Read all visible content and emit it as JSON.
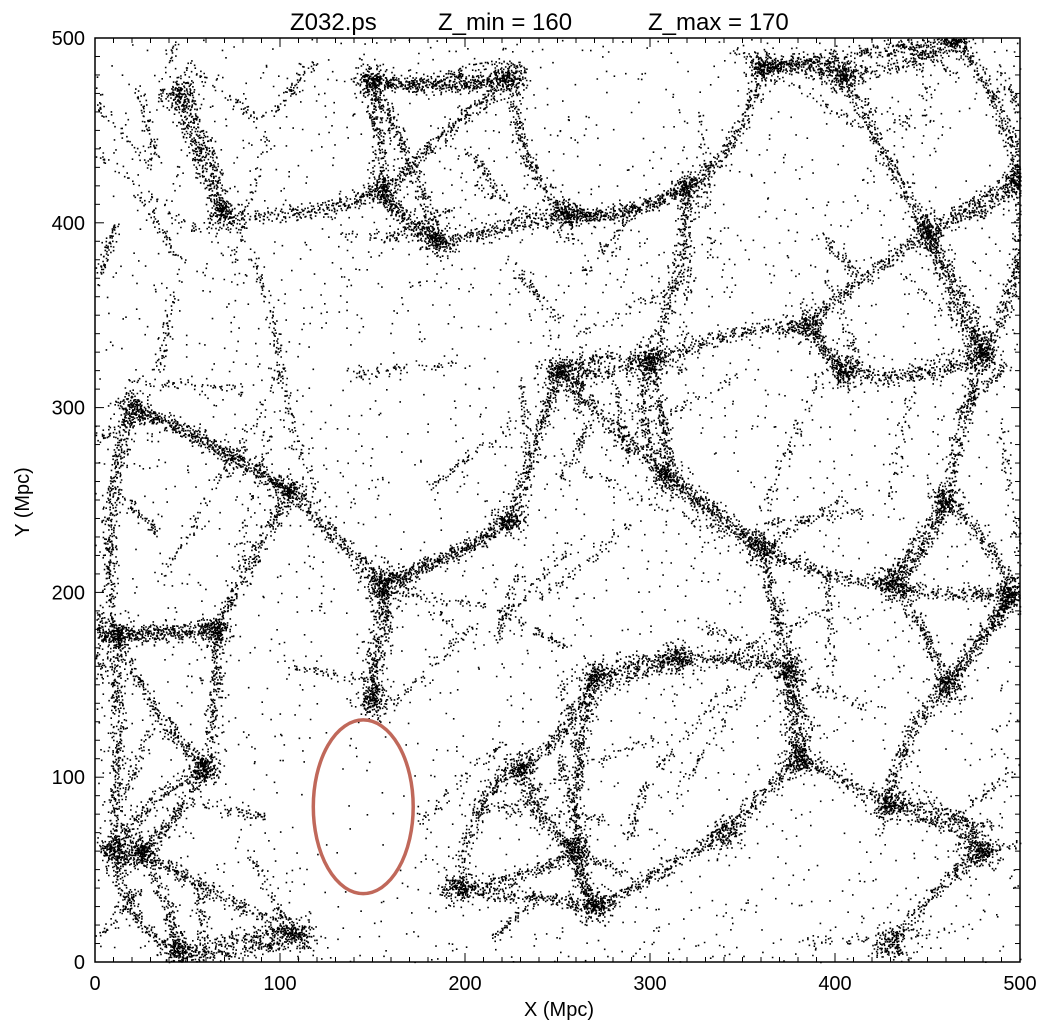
{
  "title": {
    "file": "Z032.ps",
    "zmin": "Z_min = 160",
    "zmax": "Z_max = 170"
  },
  "colors": {
    "points": "#000000",
    "highlight_ellipse": "#c0685a",
    "frame": "#000000"
  },
  "chart_data": {
    "type": "scatter",
    "xlabel": "X (Mpc)",
    "ylabel": "Y (Mpc)",
    "xlim": [
      0,
      500
    ],
    "ylim": [
      0,
      500
    ],
    "xticks": [
      "0",
      "100",
      "200",
      "300",
      "400",
      "500"
    ],
    "yticks": [
      "0",
      "100",
      "200",
      "300",
      "400",
      "500"
    ],
    "grid": false,
    "legend": "none",
    "point_color": "#000000",
    "clusters": [
      {
        "x": 148,
        "y": 478
      },
      {
        "x": 225,
        "y": 480
      },
      {
        "x": 320,
        "y": 420
      },
      {
        "x": 68,
        "y": 405
      },
      {
        "x": 155,
        "y": 418
      },
      {
        "x": 360,
        "y": 485
      },
      {
        "x": 465,
        "y": 500
      },
      {
        "x": 405,
        "y": 480
      },
      {
        "x": 500,
        "y": 425
      },
      {
        "x": 450,
        "y": 395
      },
      {
        "x": 385,
        "y": 345
      },
      {
        "x": 300,
        "y": 325
      },
      {
        "x": 250,
        "y": 320
      },
      {
        "x": 185,
        "y": 390
      },
      {
        "x": 105,
        "y": 255
      },
      {
        "x": 20,
        "y": 300
      },
      {
        "x": 308,
        "y": 263
      },
      {
        "x": 360,
        "y": 225
      },
      {
        "x": 405,
        "y": 320
      },
      {
        "x": 480,
        "y": 330
      },
      {
        "x": 155,
        "y": 205
      },
      {
        "x": 65,
        "y": 180
      },
      {
        "x": 10,
        "y": 178
      },
      {
        "x": 225,
        "y": 240
      },
      {
        "x": 315,
        "y": 165
      },
      {
        "x": 270,
        "y": 155
      },
      {
        "x": 375,
        "y": 160
      },
      {
        "x": 460,
        "y": 150
      },
      {
        "x": 428,
        "y": 85
      },
      {
        "x": 230,
        "y": 105
      },
      {
        "x": 195,
        "y": 40
      },
      {
        "x": 60,
        "y": 105
      },
      {
        "x": 10,
        "y": 60
      },
      {
        "x": 45,
        "y": 5
      },
      {
        "x": 110,
        "y": 15
      },
      {
        "x": 260,
        "y": 60
      },
      {
        "x": 340,
        "y": 70
      },
      {
        "x": 430,
        "y": 10
      },
      {
        "x": 480,
        "y": 60
      },
      {
        "x": 380,
        "y": 110
      },
      {
        "x": 270,
        "y": 30
      },
      {
        "x": 460,
        "y": 250
      },
      {
        "x": 495,
        "y": 200
      },
      {
        "x": 430,
        "y": 205
      },
      {
        "x": 255,
        "y": 405
      },
      {
        "x": 45,
        "y": 470
      },
      {
        "x": 25,
        "y": 60
      },
      {
        "x": 150,
        "y": 140
      }
    ],
    "highlight": {
      "shape": "ellipse",
      "cx": 145,
      "cy": 84,
      "rx": 27,
      "ry": 47
    }
  }
}
